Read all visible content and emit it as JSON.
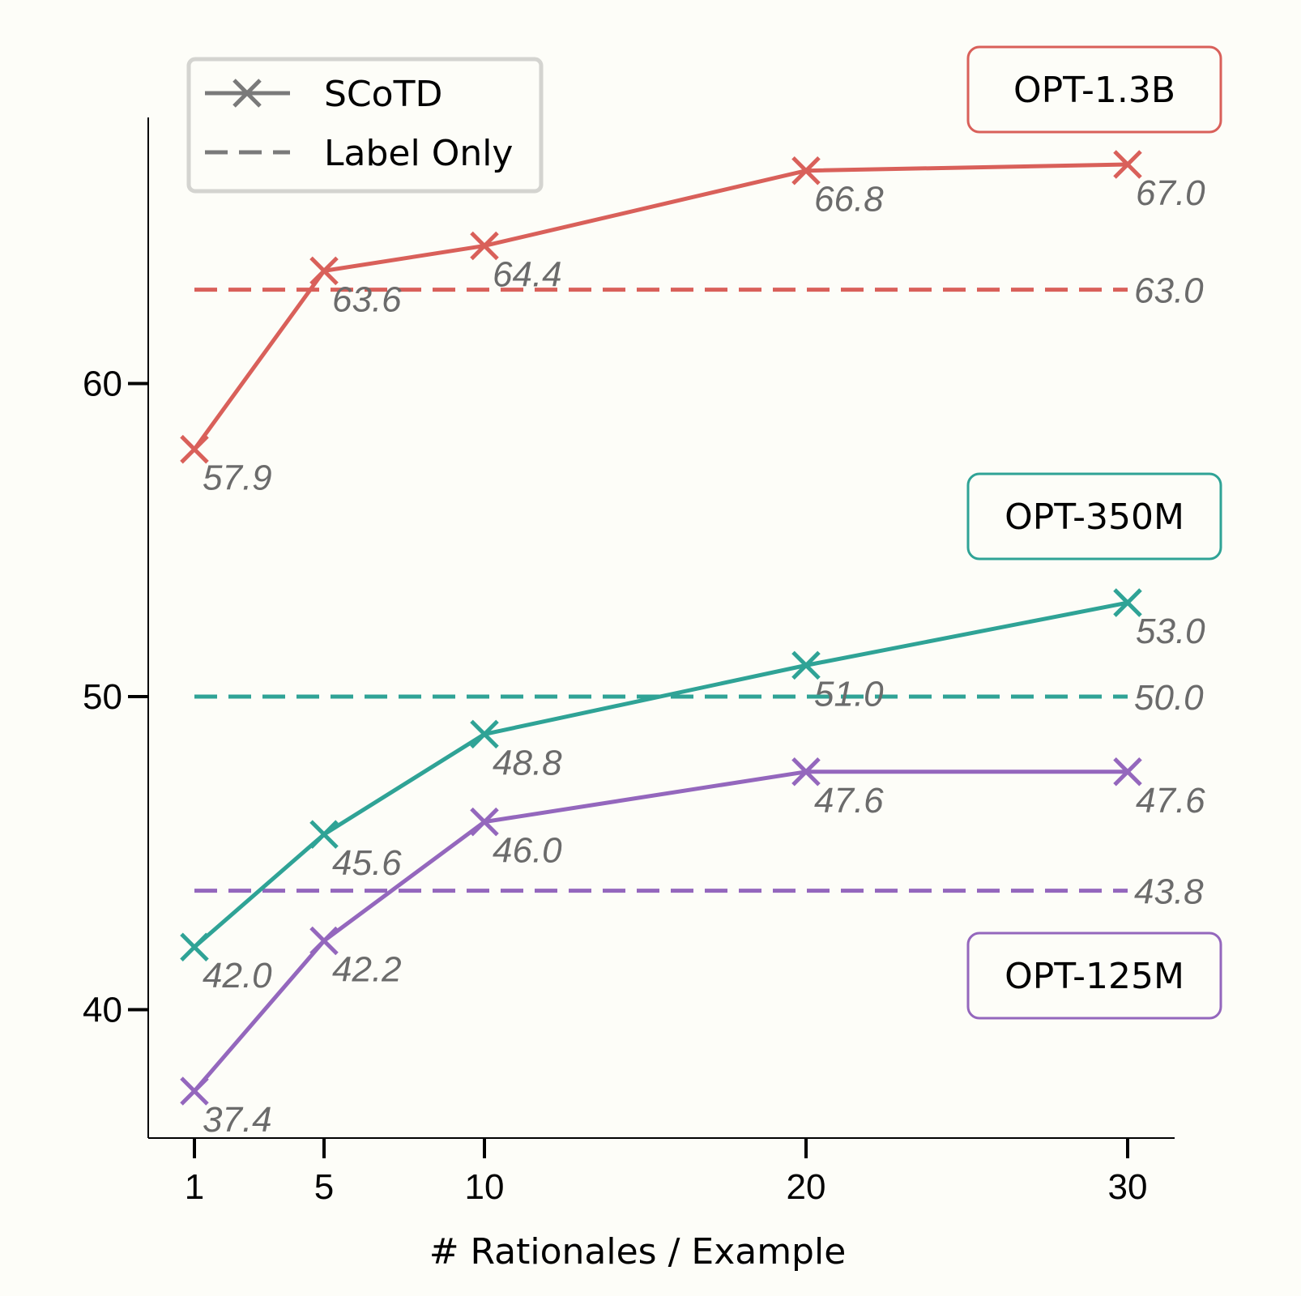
{
  "chart_data": {
    "type": "line",
    "x": [
      1,
      5,
      10,
      20,
      30
    ],
    "xlabel": "# Rationales / Example",
    "ylabel": "",
    "xticks": [
      "1",
      "5",
      "10",
      "20",
      "30"
    ],
    "yticks": [
      40,
      50,
      60
    ],
    "ylim": [
      35.9,
      68.5
    ],
    "grid": false,
    "legend": {
      "placement": "top-left",
      "entries": [
        {
          "label": "SCoTD",
          "style": "solid-x",
          "color": "#7a7a7a"
        },
        {
          "label": "Label Only",
          "style": "dashed",
          "color": "#7a7a7a"
        }
      ]
    },
    "series": [
      {
        "name": "OPT-1.3B",
        "color": "#d9605a",
        "values": [
          57.9,
          63.6,
          64.4,
          66.8,
          67.0
        ],
        "value_labels": [
          "57.9",
          "63.6",
          "64.4",
          "66.8",
          "67.0"
        ],
        "baseline": 63.0,
        "baseline_label": "63.0"
      },
      {
        "name": "OPT-350M",
        "color": "#2fa396",
        "values": [
          42.0,
          45.6,
          48.8,
          51.0,
          53.0
        ],
        "value_labels": [
          "42.0",
          "45.6",
          "48.8",
          "51.0",
          "53.0"
        ],
        "baseline": 50.0,
        "baseline_label": "50.0"
      },
      {
        "name": "OPT-125M",
        "color": "#9467bd",
        "values": [
          37.4,
          42.2,
          46.0,
          47.6,
          47.6
        ],
        "value_labels": [
          "37.4",
          "42.2",
          "46.0",
          "47.6",
          "47.6"
        ],
        "baseline": 43.8,
        "baseline_label": "43.8"
      }
    ]
  }
}
